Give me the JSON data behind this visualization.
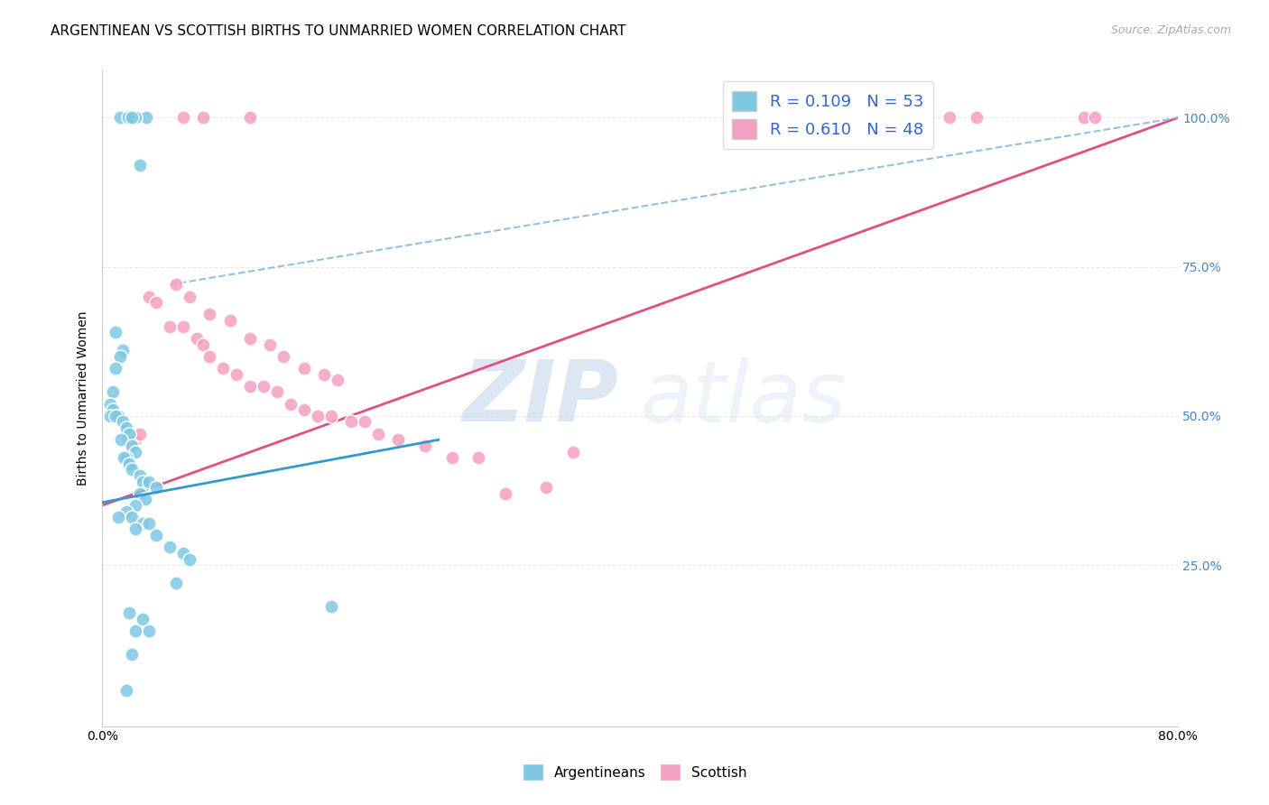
{
  "title": "ARGENTINEAN VS SCOTTISH BIRTHS TO UNMARRIED WOMEN CORRELATION CHART",
  "source": "Source: ZipAtlas.com",
  "ylabel": "Births to Unmarried Women",
  "xlabel": "",
  "xlim": [
    0.0,
    0.8
  ],
  "ylim": [
    -0.02,
    1.08
  ],
  "xticks": [
    0.0,
    0.1,
    0.2,
    0.3,
    0.4,
    0.5,
    0.6,
    0.7,
    0.8
  ],
  "xticklabels": [
    "0.0%",
    "",
    "",
    "",
    "",
    "",
    "",
    "",
    "80.0%"
  ],
  "ytick_positions": [
    0.25,
    0.5,
    0.75,
    1.0
  ],
  "ytick_labels": [
    "25.0%",
    "50.0%",
    "75.0%",
    "100.0%"
  ],
  "color_argentinean": "#7ec8e3",
  "color_scottish": "#f4a0c0",
  "color_argentinean_line": "#7ec8e3",
  "color_scottish_line": "#e05080",
  "watermark_zip": "ZIP",
  "watermark_atlas": "atlas",
  "argentinean_x": [
    0.025,
    0.033,
    0.025,
    0.013,
    0.02,
    0.019,
    0.022,
    0.028,
    0.01,
    0.015,
    0.013,
    0.01,
    0.008,
    0.006,
    0.008,
    0.006,
    0.012,
    0.01,
    0.015,
    0.018,
    0.02,
    0.014,
    0.022,
    0.025,
    0.018,
    0.016,
    0.02,
    0.022,
    0.028,
    0.03,
    0.035,
    0.04,
    0.028,
    0.032,
    0.025,
    0.018,
    0.012,
    0.022,
    0.03,
    0.035,
    0.025,
    0.04,
    0.05,
    0.06,
    0.065,
    0.055,
    0.17,
    0.02,
    0.03,
    0.025,
    0.035,
    0.022,
    0.018
  ],
  "argentinean_y": [
    1.0,
    1.0,
    1.0,
    1.0,
    1.0,
    1.0,
    1.0,
    0.92,
    0.64,
    0.61,
    0.6,
    0.58,
    0.54,
    0.52,
    0.51,
    0.5,
    0.5,
    0.5,
    0.49,
    0.48,
    0.47,
    0.46,
    0.45,
    0.44,
    0.43,
    0.43,
    0.42,
    0.41,
    0.4,
    0.39,
    0.39,
    0.38,
    0.37,
    0.36,
    0.35,
    0.34,
    0.33,
    0.33,
    0.32,
    0.32,
    0.31,
    0.3,
    0.28,
    0.27,
    0.26,
    0.22,
    0.18,
    0.17,
    0.16,
    0.14,
    0.14,
    0.1,
    0.04
  ],
  "scottish_x": [
    0.02,
    0.022,
    0.025,
    0.028,
    0.035,
    0.04,
    0.05,
    0.06,
    0.07,
    0.075,
    0.08,
    0.09,
    0.1,
    0.11,
    0.12,
    0.13,
    0.14,
    0.15,
    0.16,
    0.17,
    0.185,
    0.195,
    0.205,
    0.22,
    0.24,
    0.26,
    0.28,
    0.3,
    0.33,
    0.35,
    0.055,
    0.065,
    0.08,
    0.095,
    0.11,
    0.125,
    0.135,
    0.15,
    0.165,
    0.175,
    0.55,
    0.63,
    0.65,
    0.73,
    0.738,
    0.11,
    0.075,
    0.06
  ],
  "scottish_y": [
    0.46,
    0.45,
    0.46,
    0.47,
    0.7,
    0.69,
    0.65,
    0.65,
    0.63,
    0.62,
    0.6,
    0.58,
    0.57,
    0.55,
    0.55,
    0.54,
    0.52,
    0.51,
    0.5,
    0.5,
    0.49,
    0.49,
    0.47,
    0.46,
    0.45,
    0.43,
    0.43,
    0.37,
    0.38,
    0.44,
    0.72,
    0.7,
    0.67,
    0.66,
    0.63,
    0.62,
    0.6,
    0.58,
    0.57,
    0.56,
    1.0,
    1.0,
    1.0,
    1.0,
    1.0,
    1.0,
    1.0,
    1.0
  ],
  "arg_line_x": [
    0.0,
    0.25
  ],
  "arg_line_y": [
    0.355,
    0.46
  ],
  "scot_line_x": [
    0.0,
    0.8
  ],
  "scot_line_y": [
    0.35,
    1.0
  ],
  "blue_dash_line_x": [
    0.05,
    0.8
  ],
  "blue_dash_line_y": [
    0.72,
    1.0
  ],
  "grid_color": "#e8e8e8",
  "background_color": "#ffffff",
  "title_fontsize": 11,
  "axis_label_fontsize": 10,
  "tick_fontsize": 10,
  "legend_fontsize": 13
}
